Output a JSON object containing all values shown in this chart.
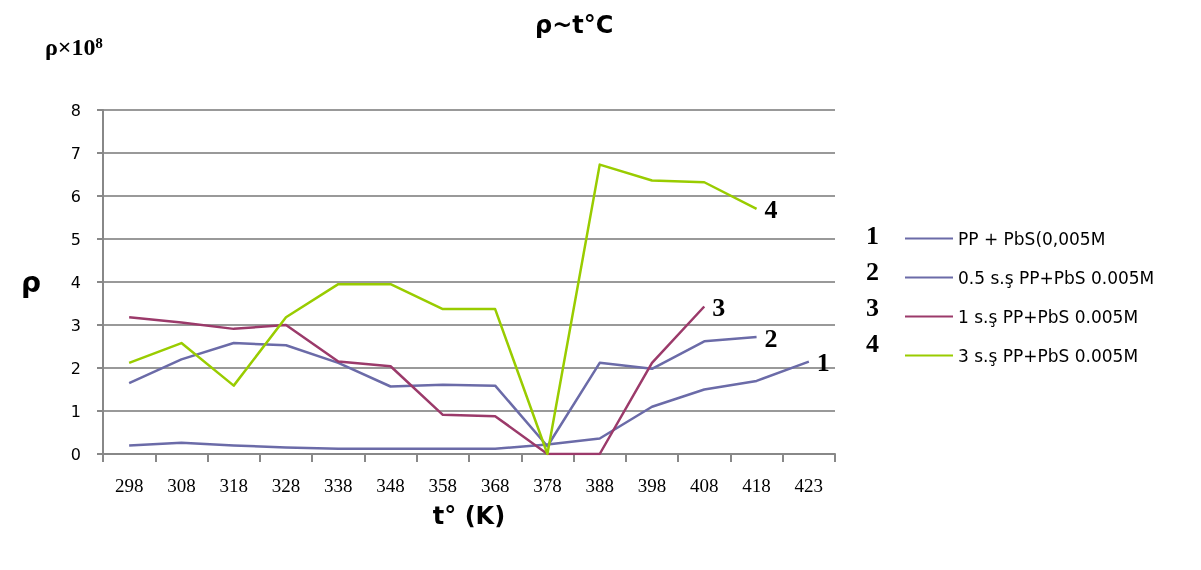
{
  "chart_data": {
    "type": "line",
    "title": "ρ~t°C",
    "xlabel": "t° (K)",
    "ylabel": "ρ",
    "categories": [
      "298",
      "308",
      "318",
      "328",
      "338",
      "348",
      "358",
      "368",
      "378",
      "388",
      "398",
      "408",
      "418",
      "423"
    ],
    "series": [
      {
        "name": "PP + PbS(0,005M",
        "color": "#6b6ba8",
        "values": [
          0.2,
          0.26,
          0.2,
          0.15,
          0.12,
          0.12,
          0.12,
          0.12,
          0.22,
          0.36,
          1.1,
          1.5,
          1.7,
          2.15
        ]
      },
      {
        "name": "0.5 s.ş PP+PbS 0.005M",
        "color": "#6b6ba8",
        "values": [
          1.65,
          2.2,
          2.58,
          2.53,
          2.12,
          1.57,
          1.61,
          1.59,
          0.18,
          2.12,
          1.98,
          2.62,
          2.72,
          null
        ]
      },
      {
        "name": "1 s.ş PP+PbS 0.005M",
        "color": "#9b3a6a",
        "values": [
          3.18,
          3.06,
          2.91,
          3.0,
          2.15,
          2.04,
          0.91,
          0.88,
          0,
          0,
          2.12,
          3.43,
          null,
          null
        ]
      },
      {
        "name": "3 s.ş PP+PbS 0.005M",
        "color": "#99cc00",
        "values": [
          2.12,
          2.58,
          1.59,
          3.18,
          3.95,
          3.95,
          3.37,
          3.37,
          0,
          6.73,
          6.36,
          6.32,
          5.7,
          null
        ]
      }
    ],
    "annotations": [
      "ρ×10⁸",
      {
        "text": "1",
        "x": "423",
        "y": 2.15
      },
      {
        "text": "2",
        "x": "418",
        "y": 2.72
      },
      {
        "text": "3",
        "x": "408",
        "y": 3.43
      },
      {
        "text": "4",
        "x": "418",
        "y": 5.7
      }
    ],
    "ylim": [
      0,
      8
    ],
    "yticks": [
      0,
      1,
      2,
      3,
      4,
      5,
      6,
      7,
      8
    ],
    "grid": "y",
    "legend": "right",
    "marker": "none",
    "line_style": "solid"
  }
}
